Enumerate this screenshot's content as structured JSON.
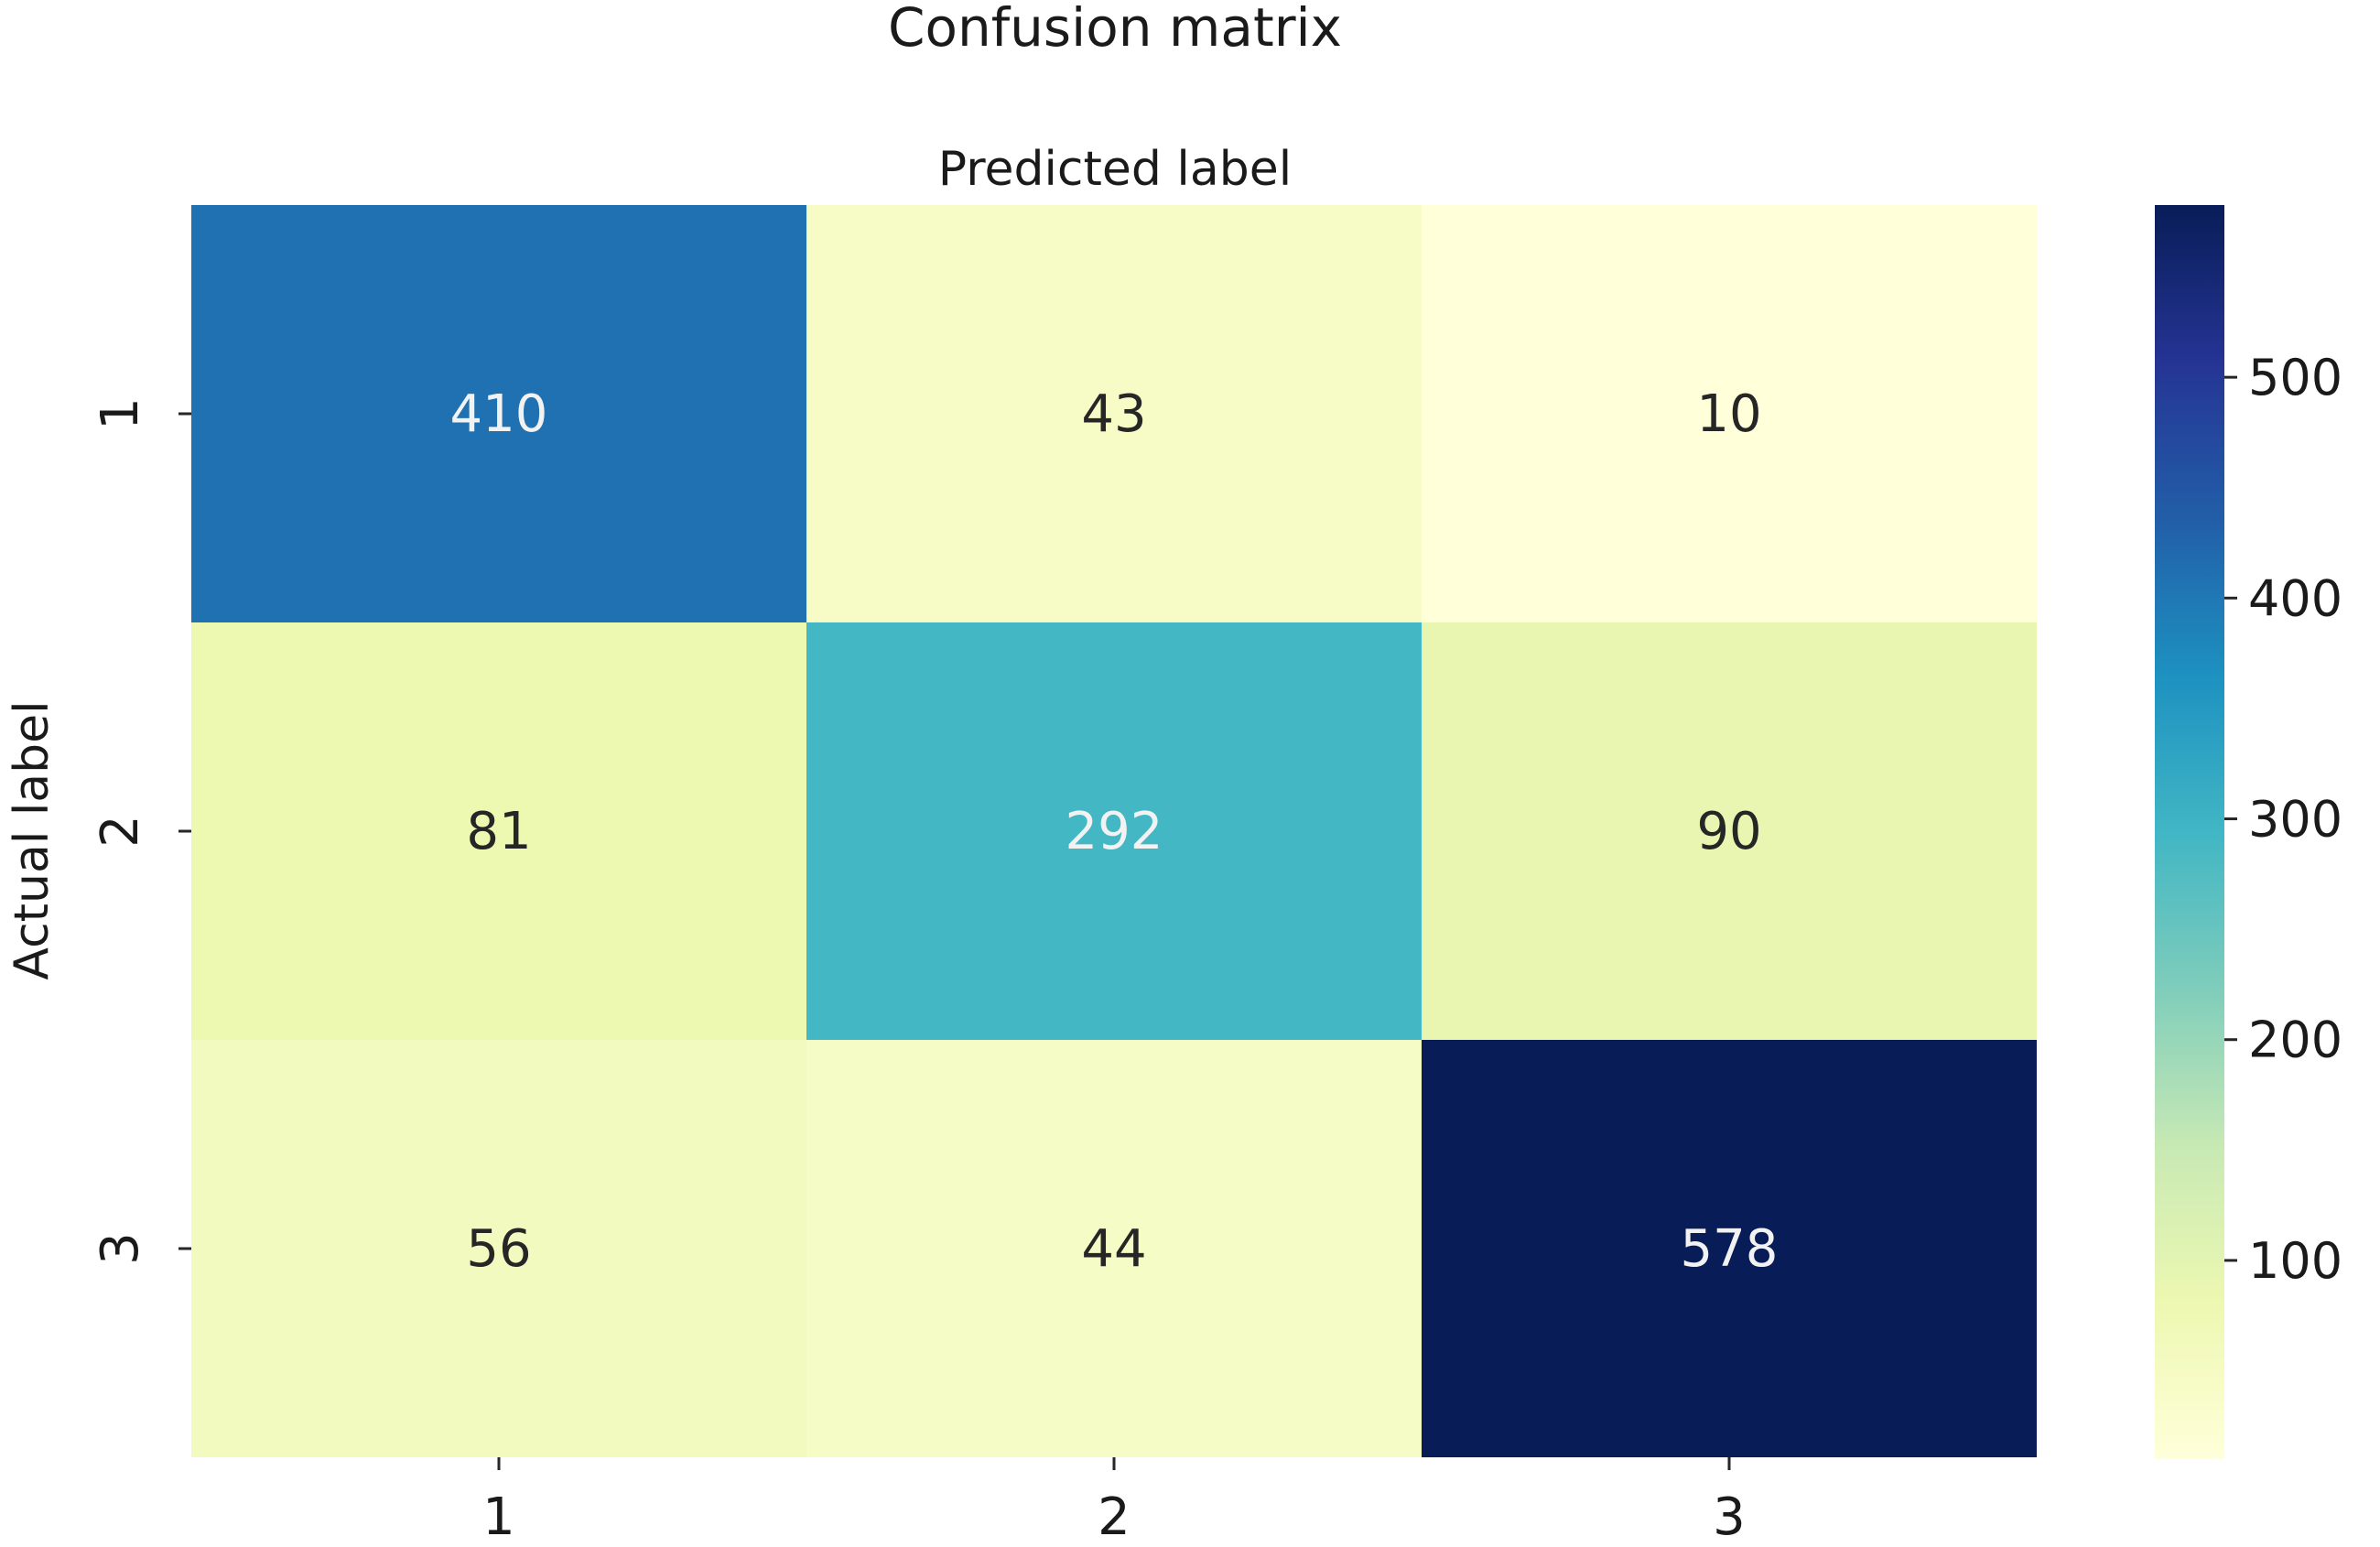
{
  "chart_data": {
    "type": "heatmap",
    "title": "Confusion matrix",
    "xlabel": "Predicted label",
    "ylabel": "Actual label",
    "x_categories": [
      "1",
      "2",
      "3"
    ],
    "y_categories": [
      "1",
      "2",
      "3"
    ],
    "values": [
      [
        410,
        43,
        10
      ],
      [
        81,
        292,
        90
      ],
      [
        56,
        44,
        578
      ]
    ],
    "colormap": "YlGnBu",
    "colorbar": {
      "range": [
        10,
        578
      ],
      "ticks": [
        100,
        200,
        300,
        400,
        500
      ]
    },
    "grid": false,
    "legend": "colorbar-right"
  }
}
